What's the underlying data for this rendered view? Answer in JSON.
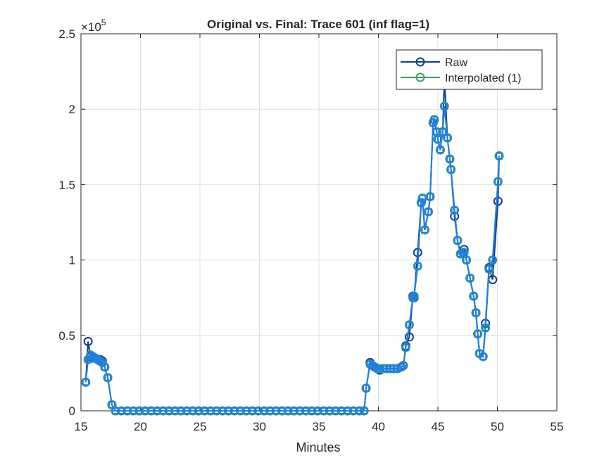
{
  "chart_data": {
    "type": "line",
    "title": "Original vs. Final: Trace 601 (inf flag=1)",
    "x_label": "Minutes",
    "y_multiplier": "×10",
    "y_multiplier_exponent": "5",
    "xlim": [
      15,
      55
    ],
    "xticks": [
      15,
      20,
      25,
      30,
      35,
      40,
      45,
      50,
      55
    ],
    "ylim": [
      0,
      2.5
    ],
    "yticks": [
      0,
      0.5,
      1,
      1.5,
      2,
      2.5
    ],
    "grid": true,
    "legend_position": "northeast",
    "x": [
      15.4,
      15.6,
      15.8,
      16.0,
      16.2,
      16.4,
      16.6,
      16.8,
      17.0,
      17.25,
      17.6,
      17.9,
      18.4,
      18.9,
      19.4,
      19.9,
      20.4,
      20.9,
      21.4,
      21.9,
      22.4,
      22.9,
      23.4,
      23.9,
      24.4,
      24.9,
      25.4,
      25.9,
      26.4,
      26.9,
      27.4,
      27.9,
      28.4,
      28.9,
      29.4,
      29.9,
      30.4,
      30.9,
      31.4,
      31.9,
      32.4,
      32.9,
      33.4,
      33.9,
      34.4,
      34.9,
      35.4,
      35.9,
      36.4,
      36.9,
      37.4,
      37.9,
      38.4,
      38.8,
      38.97,
      39.3,
      39.5,
      39.7,
      39.9,
      40.1,
      40.4,
      40.7,
      41.0,
      41.3,
      41.6,
      41.9,
      42.1,
      42.3,
      42.6,
      42.9,
      43.0,
      43.3,
      43.6,
      43.7,
      43.9,
      44.2,
      44.35,
      44.6,
      44.7,
      44.9,
      45.0,
      45.2,
      45.4,
      45.55,
      45.8,
      46.0,
      46.1,
      46.4,
      46.65,
      46.9,
      47.1,
      47.2,
      47.4,
      47.7,
      48.0,
      48.2,
      48.35,
      48.5,
      48.8,
      49.0,
      49.3,
      49.6,
      50.05,
      50.15
    ],
    "series": [
      {
        "name": "Raw",
        "color": "#0d3f91",
        "marker": "circle",
        "values": [
          0.19,
          0.46,
          0.36,
          0.35,
          0.35,
          0.34,
          0.34,
          0.33,
          0.29,
          0.22,
          0.04,
          0,
          0,
          0,
          0,
          0,
          0,
          0,
          0,
          0,
          0,
          0,
          0,
          0,
          0,
          0,
          0,
          0,
          0,
          0,
          0,
          0,
          0,
          0,
          0,
          0,
          0,
          0,
          0,
          0,
          0,
          0,
          0,
          0,
          0,
          0,
          0,
          0,
          0,
          0,
          0,
          0,
          0,
          0,
          0.15,
          0.32,
          0.3,
          0.29,
          0.28,
          0.27,
          0.28,
          0.28,
          0.28,
          0.28,
          0.28,
          0.29,
          0.3,
          0.43,
          0.49,
          0.76,
          0.75,
          1.05,
          1.38,
          1.41,
          1.2,
          1.32,
          1.42,
          1.91,
          1.93,
          1.85,
          1.8,
          1.73,
          1.85,
          2.2,
          1.81,
          1.67,
          1.6,
          1.29,
          1.13,
          1.04,
          1.05,
          1.07,
          1.0,
          0.88,
          0.76,
          0.65,
          0.51,
          0.38,
          0.36,
          0.58,
          0.95,
          0.87,
          1.39,
          1.69
        ]
      },
      {
        "name": "Interpolated (1)",
        "color": "#3aa35f",
        "marker": "circle",
        "values": [
          0.19,
          0.34,
          0.37,
          0.36,
          0.35,
          0.34,
          0.33,
          0.32,
          0.29,
          0.22,
          0.04,
          0,
          0,
          0,
          0,
          0,
          0,
          0,
          0,
          0,
          0,
          0,
          0,
          0,
          0,
          0,
          0,
          0,
          0,
          0,
          0,
          0,
          0,
          0,
          0,
          0,
          0,
          0,
          0,
          0,
          0,
          0,
          0,
          0,
          0,
          0,
          0,
          0,
          0,
          0,
          0,
          0,
          0,
          0,
          0.15,
          0.31,
          0.3,
          0.29,
          0.28,
          0.28,
          0.28,
          0.28,
          0.28,
          0.28,
          0.28,
          0.29,
          0.3,
          0.42,
          0.57,
          0.75,
          0.76,
          0.96,
          1.38,
          1.41,
          1.2,
          1.32,
          1.42,
          1.91,
          1.93,
          1.85,
          1.8,
          1.73,
          1.85,
          2.02,
          1.81,
          1.67,
          1.6,
          1.33,
          1.13,
          1.04,
          1.05,
          1.05,
          1.0,
          0.88,
          0.76,
          0.65,
          0.51,
          0.38,
          0.36,
          0.55,
          0.94,
          1.0,
          1.52,
          1.69
        ]
      },
      {
        "color": "#1f7ee8",
        "marker": "square",
        "values": [
          0.19,
          0.34,
          0.37,
          0.36,
          0.35,
          0.34,
          0.33,
          0.32,
          0.29,
          0.22,
          0.04,
          0,
          0,
          0,
          0,
          0,
          0,
          0,
          0,
          0,
          0,
          0,
          0,
          0,
          0,
          0,
          0,
          0,
          0,
          0,
          0,
          0,
          0,
          0,
          0,
          0,
          0,
          0,
          0,
          0,
          0,
          0,
          0,
          0,
          0,
          0,
          0,
          0,
          0,
          0,
          0,
          0,
          0,
          0,
          0.15,
          0.31,
          0.3,
          0.29,
          0.28,
          0.28,
          0.28,
          0.28,
          0.28,
          0.28,
          0.28,
          0.29,
          0.3,
          0.42,
          0.57,
          0.75,
          0.76,
          0.96,
          1.38,
          1.41,
          1.2,
          1.32,
          1.42,
          1.91,
          1.93,
          1.85,
          1.8,
          1.73,
          1.85,
          2.02,
          1.81,
          1.67,
          1.6,
          1.33,
          1.13,
          1.04,
          1.05,
          1.05,
          1.0,
          0.88,
          0.76,
          0.65,
          0.51,
          0.38,
          0.36,
          0.55,
          0.94,
          1.0,
          1.52,
          1.69
        ]
      }
    ]
  }
}
